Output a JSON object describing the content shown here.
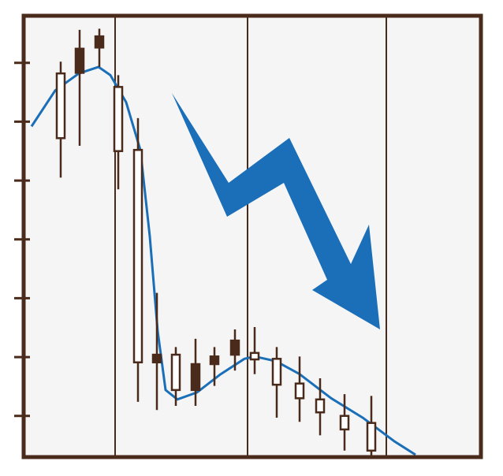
{
  "chart_data": {
    "type": "candlestick",
    "xlim": [
      0,
      580
    ],
    "xticks": [
      116,
      284,
      460
    ],
    "ylim": [
      0.3,
      7.8
    ],
    "yticks": [
      1,
      2,
      3,
      4,
      5,
      6,
      7
    ],
    "up_color": "#ffffff",
    "down_color": "#4a2a1a",
    "frame_color": "#4a2a1a",
    "background": "#f5f5f5",
    "candles": [
      {
        "x": 47,
        "open": 5.72,
        "high": 7.02,
        "low": 5.05,
        "close": 6.82
      },
      {
        "x": 71,
        "open": 7.24,
        "high": 7.56,
        "low": 5.59,
        "close": 6.83
      },
      {
        "x": 96,
        "open": 7.45,
        "high": 7.58,
        "low": 6.93,
        "close": 7.26
      },
      {
        "x": 120,
        "open": 5.5,
        "high": 6.79,
        "low": 4.85,
        "close": 6.59
      },
      {
        "x": 145,
        "open": 1.91,
        "high": 6.06,
        "low": 1.24,
        "close": 5.52
      },
      {
        "x": 169,
        "open": 2.04,
        "high": 3.09,
        "low": 1.1,
        "close": 1.91
      },
      {
        "x": 193,
        "open": 1.44,
        "high": 2.17,
        "low": 1.17,
        "close": 2.04
      },
      {
        "x": 218,
        "open": 1.88,
        "high": 2.31,
        "low": 1.17,
        "close": 1.44
      },
      {
        "x": 242,
        "open": 2.01,
        "high": 2.17,
        "low": 1.51,
        "close": 1.88
      },
      {
        "x": 268,
        "open": 2.28,
        "high": 2.47,
        "low": 1.77,
        "close": 2.04
      },
      {
        "x": 293,
        "open": 1.96,
        "high": 2.51,
        "low": 1.71,
        "close": 2.07
      },
      {
        "x": 321,
        "open": 1.53,
        "high": 2.17,
        "low": 0.97,
        "close": 1.97
      },
      {
        "x": 350,
        "open": 1.3,
        "high": 2.01,
        "low": 0.9,
        "close": 1.55
      },
      {
        "x": 376,
        "open": 1.06,
        "high": 1.64,
        "low": 0.67,
        "close": 1.28
      },
      {
        "x": 407,
        "open": 0.77,
        "high": 1.37,
        "low": 0.41,
        "close": 1.0
      },
      {
        "x": 441,
        "open": 0.41,
        "high": 1.34,
        "low": 0.33,
        "close": 0.88
      }
    ],
    "trend": {
      "color": "#1a6fb8",
      "x": [
        10,
        40,
        70,
        95,
        110,
        130,
        148,
        160,
        170,
        180,
        195,
        220,
        250,
        280,
        293,
        320,
        350,
        390,
        430,
        470,
        497
      ],
      "values": [
        5.92,
        6.53,
        6.82,
        6.93,
        6.79,
        6.33,
        5.52,
        4.05,
        2.44,
        1.44,
        1.28,
        1.4,
        1.71,
        1.97,
        2.01,
        1.93,
        1.71,
        1.3,
        0.97,
        0.57,
        0.34
      ]
    }
  }
}
